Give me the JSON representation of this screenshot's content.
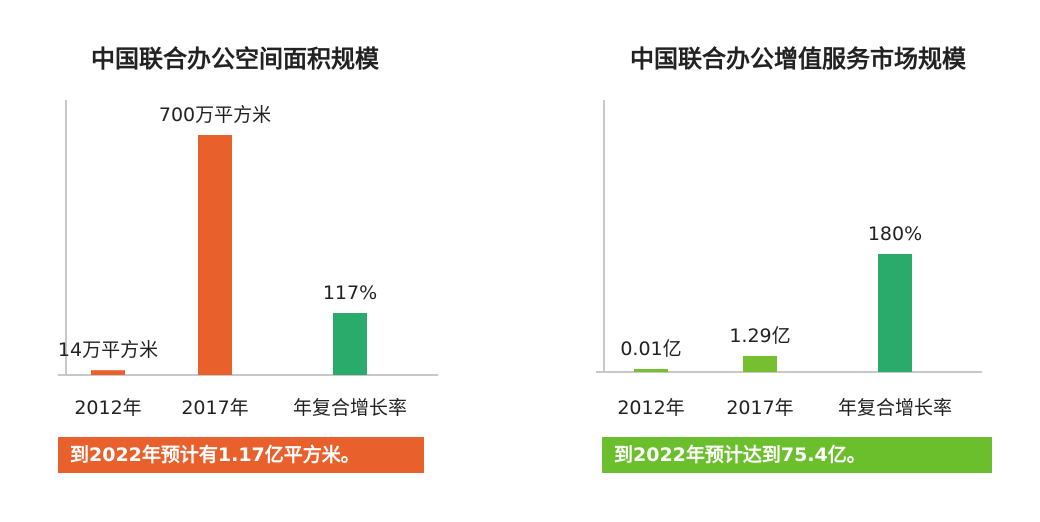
{
  "chart_data": [
    {
      "type": "bar",
      "title": "中国联合办公空间面积规模",
      "categories": [
        "2012年",
        "2017年",
        "年复合增长率"
      ],
      "values": [
        14,
        700,
        117
      ],
      "data_labels": [
        "14万平方米",
        "700万平方米",
        "117%"
      ],
      "bar_colors": [
        "#e8612c",
        "#e8612c",
        "#2aaa6b"
      ],
      "footnote": "到2022年预计有1.17亿平方米。",
      "footnote_color": "#e8612c",
      "ylim": [
        0,
        750
      ],
      "grid": false
    },
    {
      "type": "bar",
      "title": "中国联合办公增值服务市场规模",
      "categories": [
        "2012年",
        "2017年",
        "年复合增长率"
      ],
      "values": [
        0.01,
        1.29,
        180
      ],
      "data_labels": [
        "0.01亿",
        "1.29亿",
        "180%"
      ],
      "bar_colors": [
        "#76bf30",
        "#76bf30",
        "#2aaa6b"
      ],
      "footnote": "到2022年预计达到75.4亿。",
      "footnote_color": "#6cbf2c",
      "grid": false
    }
  ]
}
